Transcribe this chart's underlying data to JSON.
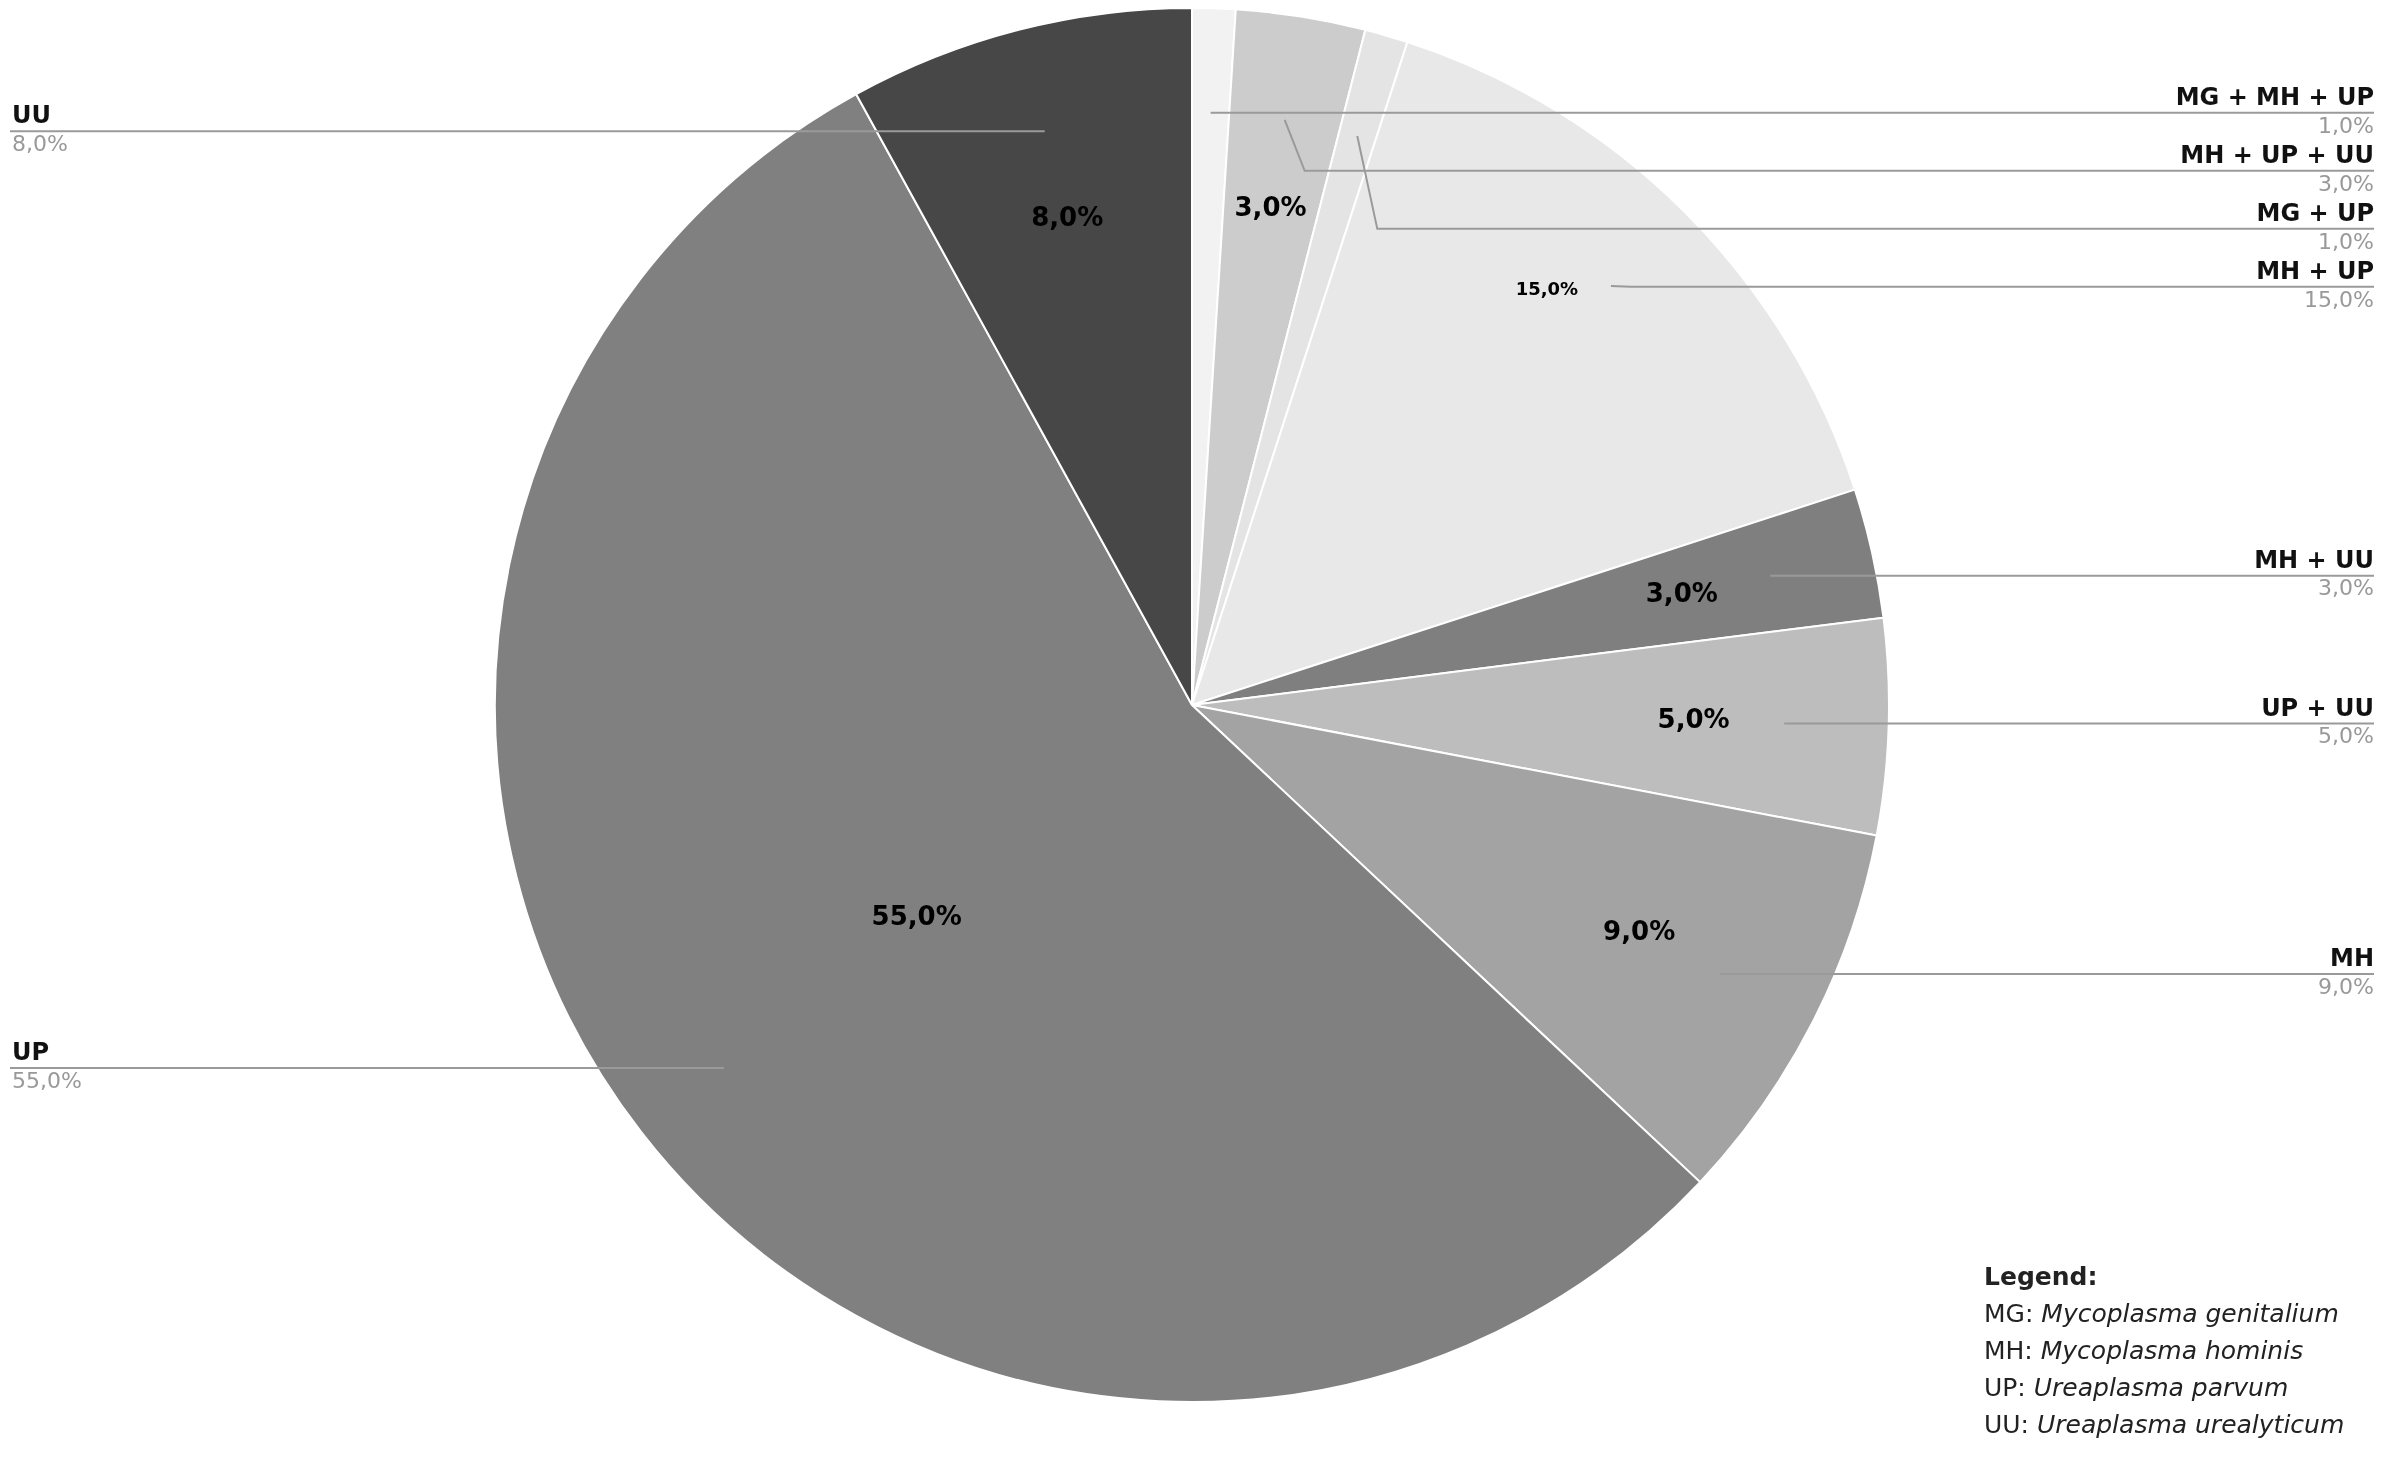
{
  "chart_data": {
    "type": "pie",
    "categories": [
      "MG + MH + UP",
      "MH + UP + UU",
      "MG + UP",
      "MH + UP",
      "MH + UU",
      "UP + UU",
      "MH",
      "UP",
      "UU"
    ],
    "values": [
      1,
      3,
      1,
      15,
      3,
      5,
      9,
      55,
      8
    ],
    "value_labels": [
      "1,0%",
      "3,0%",
      "1,0%",
      "15,0%",
      "3,0%",
      "5,0%",
      "9,0%",
      "55,0%",
      "8,0%"
    ],
    "colors": [
      "#f2f2f2",
      "#cccccc",
      "#e4e4e4",
      "#e8e8e8",
      "#7f7f7f",
      "#bdbdbd",
      "#a3a3a3",
      "#808080",
      "#474747"
    ],
    "legend": false,
    "annotations": [
      "Legend:",
      "MG: Mycoplasma genitalium",
      "MH: Mycoplasma hominis",
      "UP: Ureaplasma parvum",
      "UU: Ureaplasma urealyticum"
    ]
  }
}
